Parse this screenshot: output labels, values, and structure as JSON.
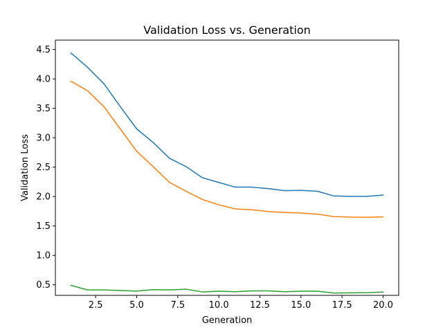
{
  "chart_data": {
    "type": "line",
    "title": "Validation Loss vs. Generation",
    "xlabel": "Generation",
    "ylabel": "Validation Loss",
    "xlim": [
      0.05,
      20.95
    ],
    "ylim": [
      0.32,
      4.66
    ],
    "xticks": [
      2.5,
      5.0,
      7.5,
      10.0,
      12.5,
      15.0,
      17.5,
      20.0
    ],
    "xtick_labels": [
      "2.5",
      "5.0",
      "7.5",
      "10.0",
      "12.5",
      "15.0",
      "17.5",
      "20.0"
    ],
    "yticks": [
      0.5,
      1.0,
      1.5,
      2.0,
      2.5,
      3.0,
      3.5,
      4.0,
      4.5
    ],
    "ytick_labels": [
      "0.5",
      "1.0",
      "1.5",
      "2.0",
      "2.5",
      "3.0",
      "3.5",
      "4.0",
      "4.5"
    ],
    "grid": false,
    "x": [
      1,
      2,
      3,
      4,
      5,
      6,
      7,
      8,
      9,
      10,
      11,
      12,
      13,
      14,
      15,
      16,
      17,
      18,
      19,
      20
    ],
    "series": [
      {
        "color": "#1f77b4",
        "values": [
          4.44,
          4.2,
          3.92,
          3.53,
          3.15,
          2.92,
          2.65,
          2.51,
          2.32,
          2.24,
          2.16,
          2.16,
          2.135,
          2.1,
          2.105,
          2.09,
          2.01,
          2.003,
          2.003,
          2.025
        ]
      },
      {
        "color": "#ff7f0e",
        "values": [
          3.96,
          3.8,
          3.53,
          3.15,
          2.77,
          2.51,
          2.24,
          2.09,
          1.95,
          1.86,
          1.79,
          1.775,
          1.745,
          1.73,
          1.72,
          1.7,
          1.66,
          1.65,
          1.647,
          1.655
        ]
      },
      {
        "color": "#2ca02c",
        "values": [
          0.49,
          0.413,
          0.412,
          0.402,
          0.392,
          0.417,
          0.413,
          0.425,
          0.378,
          0.391,
          0.381,
          0.397,
          0.397,
          0.381,
          0.39,
          0.39,
          0.36,
          0.363,
          0.365,
          0.376
        ]
      }
    ]
  }
}
